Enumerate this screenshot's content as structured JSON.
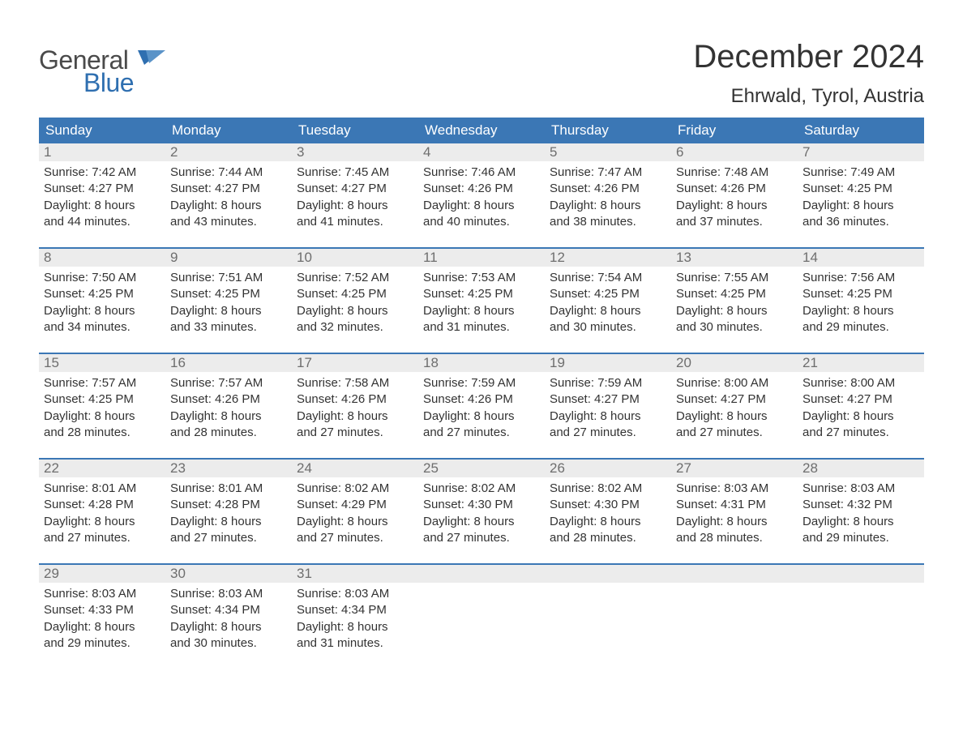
{
  "logo": {
    "text_top": "General",
    "text_bottom": "Blue"
  },
  "title": "December 2024",
  "location": "Ehrwald, Tyrol, Austria",
  "colors": {
    "header_bg": "#3b77b5",
    "header_text": "#ffffff",
    "daynum_bg": "#ececec",
    "daynum_text": "#6e6e6e",
    "body_text": "#333333",
    "logo_gray": "#4a4a4a",
    "logo_blue": "#2f6fb0",
    "row_border": "#3b77b5",
    "background": "#ffffff"
  },
  "typography": {
    "title_fontsize": 40,
    "location_fontsize": 24,
    "weekday_fontsize": 17,
    "daynum_fontsize": 17,
    "body_fontsize": 15,
    "logo_fontsize": 32
  },
  "weekdays": [
    "Sunday",
    "Monday",
    "Tuesday",
    "Wednesday",
    "Thursday",
    "Friday",
    "Saturday"
  ],
  "weeks": [
    [
      {
        "day": "1",
        "sunrise": "Sunrise: 7:42 AM",
        "sunset": "Sunset: 4:27 PM",
        "daylight1": "Daylight: 8 hours",
        "daylight2": "and 44 minutes."
      },
      {
        "day": "2",
        "sunrise": "Sunrise: 7:44 AM",
        "sunset": "Sunset: 4:27 PM",
        "daylight1": "Daylight: 8 hours",
        "daylight2": "and 43 minutes."
      },
      {
        "day": "3",
        "sunrise": "Sunrise: 7:45 AM",
        "sunset": "Sunset: 4:27 PM",
        "daylight1": "Daylight: 8 hours",
        "daylight2": "and 41 minutes."
      },
      {
        "day": "4",
        "sunrise": "Sunrise: 7:46 AM",
        "sunset": "Sunset: 4:26 PM",
        "daylight1": "Daylight: 8 hours",
        "daylight2": "and 40 minutes."
      },
      {
        "day": "5",
        "sunrise": "Sunrise: 7:47 AM",
        "sunset": "Sunset: 4:26 PM",
        "daylight1": "Daylight: 8 hours",
        "daylight2": "and 38 minutes."
      },
      {
        "day": "6",
        "sunrise": "Sunrise: 7:48 AM",
        "sunset": "Sunset: 4:26 PM",
        "daylight1": "Daylight: 8 hours",
        "daylight2": "and 37 minutes."
      },
      {
        "day": "7",
        "sunrise": "Sunrise: 7:49 AM",
        "sunset": "Sunset: 4:25 PM",
        "daylight1": "Daylight: 8 hours",
        "daylight2": "and 36 minutes."
      }
    ],
    [
      {
        "day": "8",
        "sunrise": "Sunrise: 7:50 AM",
        "sunset": "Sunset: 4:25 PM",
        "daylight1": "Daylight: 8 hours",
        "daylight2": "and 34 minutes."
      },
      {
        "day": "9",
        "sunrise": "Sunrise: 7:51 AM",
        "sunset": "Sunset: 4:25 PM",
        "daylight1": "Daylight: 8 hours",
        "daylight2": "and 33 minutes."
      },
      {
        "day": "10",
        "sunrise": "Sunrise: 7:52 AM",
        "sunset": "Sunset: 4:25 PM",
        "daylight1": "Daylight: 8 hours",
        "daylight2": "and 32 minutes."
      },
      {
        "day": "11",
        "sunrise": "Sunrise: 7:53 AM",
        "sunset": "Sunset: 4:25 PM",
        "daylight1": "Daylight: 8 hours",
        "daylight2": "and 31 minutes."
      },
      {
        "day": "12",
        "sunrise": "Sunrise: 7:54 AM",
        "sunset": "Sunset: 4:25 PM",
        "daylight1": "Daylight: 8 hours",
        "daylight2": "and 30 minutes."
      },
      {
        "day": "13",
        "sunrise": "Sunrise: 7:55 AM",
        "sunset": "Sunset: 4:25 PM",
        "daylight1": "Daylight: 8 hours",
        "daylight2": "and 30 minutes."
      },
      {
        "day": "14",
        "sunrise": "Sunrise: 7:56 AM",
        "sunset": "Sunset: 4:25 PM",
        "daylight1": "Daylight: 8 hours",
        "daylight2": "and 29 minutes."
      }
    ],
    [
      {
        "day": "15",
        "sunrise": "Sunrise: 7:57 AM",
        "sunset": "Sunset: 4:25 PM",
        "daylight1": "Daylight: 8 hours",
        "daylight2": "and 28 minutes."
      },
      {
        "day": "16",
        "sunrise": "Sunrise: 7:57 AM",
        "sunset": "Sunset: 4:26 PM",
        "daylight1": "Daylight: 8 hours",
        "daylight2": "and 28 minutes."
      },
      {
        "day": "17",
        "sunrise": "Sunrise: 7:58 AM",
        "sunset": "Sunset: 4:26 PM",
        "daylight1": "Daylight: 8 hours",
        "daylight2": "and 27 minutes."
      },
      {
        "day": "18",
        "sunrise": "Sunrise: 7:59 AM",
        "sunset": "Sunset: 4:26 PM",
        "daylight1": "Daylight: 8 hours",
        "daylight2": "and 27 minutes."
      },
      {
        "day": "19",
        "sunrise": "Sunrise: 7:59 AM",
        "sunset": "Sunset: 4:27 PM",
        "daylight1": "Daylight: 8 hours",
        "daylight2": "and 27 minutes."
      },
      {
        "day": "20",
        "sunrise": "Sunrise: 8:00 AM",
        "sunset": "Sunset: 4:27 PM",
        "daylight1": "Daylight: 8 hours",
        "daylight2": "and 27 minutes."
      },
      {
        "day": "21",
        "sunrise": "Sunrise: 8:00 AM",
        "sunset": "Sunset: 4:27 PM",
        "daylight1": "Daylight: 8 hours",
        "daylight2": "and 27 minutes."
      }
    ],
    [
      {
        "day": "22",
        "sunrise": "Sunrise: 8:01 AM",
        "sunset": "Sunset: 4:28 PM",
        "daylight1": "Daylight: 8 hours",
        "daylight2": "and 27 minutes."
      },
      {
        "day": "23",
        "sunrise": "Sunrise: 8:01 AM",
        "sunset": "Sunset: 4:28 PM",
        "daylight1": "Daylight: 8 hours",
        "daylight2": "and 27 minutes."
      },
      {
        "day": "24",
        "sunrise": "Sunrise: 8:02 AM",
        "sunset": "Sunset: 4:29 PM",
        "daylight1": "Daylight: 8 hours",
        "daylight2": "and 27 minutes."
      },
      {
        "day": "25",
        "sunrise": "Sunrise: 8:02 AM",
        "sunset": "Sunset: 4:30 PM",
        "daylight1": "Daylight: 8 hours",
        "daylight2": "and 27 minutes."
      },
      {
        "day": "26",
        "sunrise": "Sunrise: 8:02 AM",
        "sunset": "Sunset: 4:30 PM",
        "daylight1": "Daylight: 8 hours",
        "daylight2": "and 28 minutes."
      },
      {
        "day": "27",
        "sunrise": "Sunrise: 8:03 AM",
        "sunset": "Sunset: 4:31 PM",
        "daylight1": "Daylight: 8 hours",
        "daylight2": "and 28 minutes."
      },
      {
        "day": "28",
        "sunrise": "Sunrise: 8:03 AM",
        "sunset": "Sunset: 4:32 PM",
        "daylight1": "Daylight: 8 hours",
        "daylight2": "and 29 minutes."
      }
    ],
    [
      {
        "day": "29",
        "sunrise": "Sunrise: 8:03 AM",
        "sunset": "Sunset: 4:33 PM",
        "daylight1": "Daylight: 8 hours",
        "daylight2": "and 29 minutes."
      },
      {
        "day": "30",
        "sunrise": "Sunrise: 8:03 AM",
        "sunset": "Sunset: 4:34 PM",
        "daylight1": "Daylight: 8 hours",
        "daylight2": "and 30 minutes."
      },
      {
        "day": "31",
        "sunrise": "Sunrise: 8:03 AM",
        "sunset": "Sunset: 4:34 PM",
        "daylight1": "Daylight: 8 hours",
        "daylight2": "and 31 minutes."
      },
      {
        "empty": true
      },
      {
        "empty": true
      },
      {
        "empty": true
      },
      {
        "empty": true
      }
    ]
  ]
}
